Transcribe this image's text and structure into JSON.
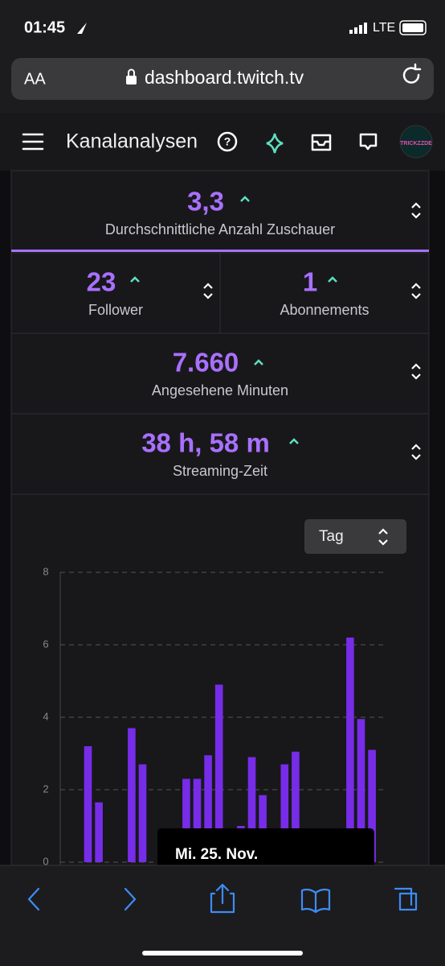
{
  "status_bar": {
    "time": "01:45",
    "network": "LTE"
  },
  "browser": {
    "text_size": "AA",
    "url": "dashboard.twitch.tv"
  },
  "nav": {
    "title": "Kanalanalysen",
    "avatar_label": "TRICKZZDE"
  },
  "stats": [
    {
      "value": "3,3",
      "label": "Durchschnittliche Anzahl Zuschauer"
    },
    {
      "value": "23",
      "label": "Follower"
    },
    {
      "value": "1",
      "label": "Abonnements"
    },
    {
      "value": "7.660",
      "label": "Angesehene Minuten"
    },
    {
      "value": "38 h, 58 m",
      "label": "Streaming-Zeit"
    }
  ],
  "period_select": "Tag",
  "tooltip": "Mi. 25. Nov.",
  "chart_data": {
    "type": "bar",
    "color": "#772ce8",
    "grid": true,
    "ylim": [
      0,
      8
    ],
    "yticks": [
      0,
      2,
      4,
      6,
      8
    ],
    "values": [
      3.2,
      1.65,
      0,
      0,
      3.7,
      2.7,
      0,
      0,
      0,
      2.3,
      2.3,
      2.95,
      4.9,
      0,
      1.0,
      2.9,
      1.85,
      0,
      2.7,
      3.05,
      0,
      0,
      0,
      0,
      6.2,
      3.95,
      3.1
    ]
  }
}
